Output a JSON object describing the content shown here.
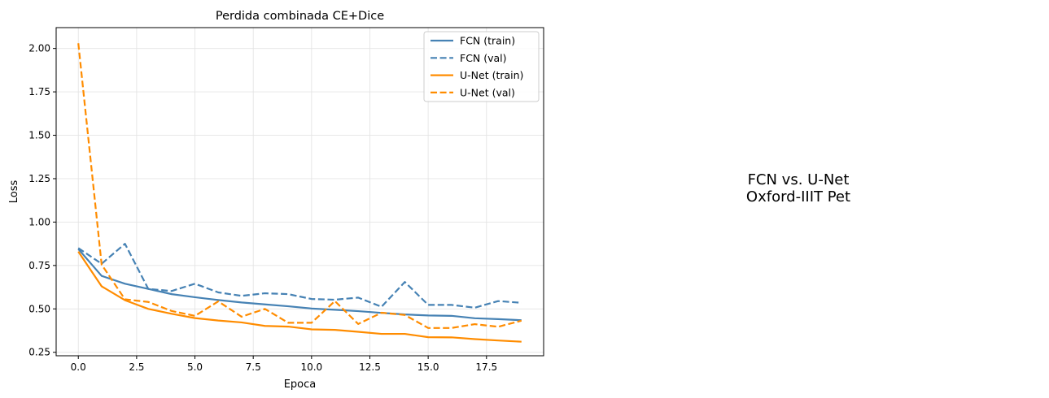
{
  "chart_data": {
    "type": "line",
    "title": "Perdida combinada CE+Dice",
    "xlabel": "Epoca",
    "ylabel": "Loss",
    "xlim": [
      -0.95,
      19.95
    ],
    "ylim": [
      0.23,
      2.12
    ],
    "xticks": [
      0,
      2.5,
      5,
      7.5,
      10,
      12.5,
      15,
      17.5
    ],
    "xtick_labels": [
      "0.0",
      "2.5",
      "5.0",
      "7.5",
      "10.0",
      "12.5",
      "15.0",
      "17.5"
    ],
    "yticks": [
      0.25,
      0.5,
      0.75,
      1.0,
      1.25,
      1.5,
      1.75,
      2.0
    ],
    "ytick_labels": [
      "0.25",
      "0.50",
      "0.75",
      "1.00",
      "1.25",
      "1.50",
      "1.75",
      "2.00"
    ],
    "grid": true,
    "legend_position": "top-right",
    "x": [
      0,
      1,
      2,
      3,
      4,
      5,
      6,
      7,
      8,
      9,
      10,
      11,
      12,
      13,
      14,
      15,
      16,
      17,
      18,
      19
    ],
    "series": [
      {
        "name": "FCN (train)",
        "color": "#4682b4",
        "dash": "solid",
        "values": [
          0.845,
          0.69,
          0.645,
          0.615,
          0.585,
          0.567,
          0.551,
          0.537,
          0.526,
          0.515,
          0.502,
          0.495,
          0.487,
          0.477,
          0.468,
          0.462,
          0.46,
          0.446,
          0.441,
          0.435
        ]
      },
      {
        "name": "FCN (val)",
        "color": "#4682b4",
        "dash": "dashed",
        "values": [
          0.85,
          0.76,
          0.875,
          0.615,
          0.603,
          0.645,
          0.595,
          0.575,
          0.59,
          0.585,
          0.557,
          0.553,
          0.565,
          0.512,
          0.655,
          0.523,
          0.523,
          0.507,
          0.545,
          0.535
        ]
      },
      {
        "name": "U-Net (train)",
        "color": "#ff8c00",
        "dash": "solid",
        "values": [
          0.83,
          0.63,
          0.55,
          0.5,
          0.472,
          0.447,
          0.433,
          0.422,
          0.402,
          0.398,
          0.382,
          0.379,
          0.368,
          0.356,
          0.356,
          0.337,
          0.336,
          0.326,
          0.318,
          0.311
        ]
      },
      {
        "name": "U-Net (val)",
        "color": "#ff8c00",
        "dash": "dashed",
        "values": [
          2.03,
          0.755,
          0.555,
          0.54,
          0.488,
          0.46,
          0.543,
          0.455,
          0.5,
          0.42,
          0.42,
          0.545,
          0.413,
          0.478,
          0.465,
          0.39,
          0.39,
          0.412,
          0.397,
          0.432
        ]
      }
    ]
  },
  "side_text": {
    "line1": "FCN vs. U-Net",
    "line2": "Oxford-IIIT Pet"
  }
}
